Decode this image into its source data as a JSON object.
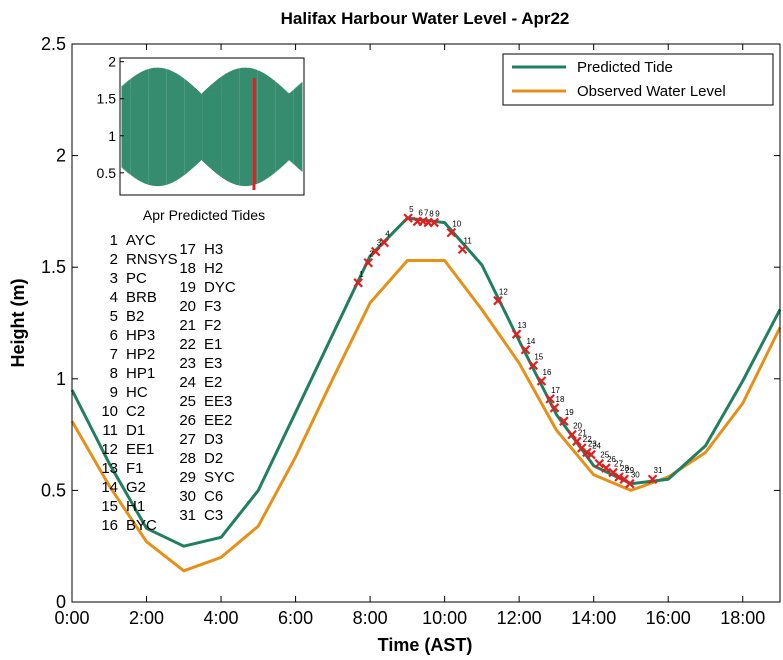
{
  "chart_data": {
    "type": "line",
    "title": "Halifax Harbour Water Level - Apr22",
    "xlabel": "Time (AST)",
    "ylabel": "Height (m)",
    "xlim": [
      0,
      19
    ],
    "ylim": [
      0,
      2.5
    ],
    "x_ticks": [
      "0:00",
      "2:00",
      "4:00",
      "6:00",
      "8:00",
      "10:00",
      "12:00",
      "14:00",
      "16:00",
      "18:00"
    ],
    "y_ticks": [
      "0",
      "0.5",
      "1",
      "1.5",
      "2",
      "2.5"
    ],
    "legend_position": "top-right",
    "series": [
      {
        "name": "Predicted Tide",
        "color": "#1f7f5e",
        "x": [
          0,
          1,
          2,
          3,
          4,
          5,
          6,
          7,
          8,
          9,
          10,
          11,
          12,
          13,
          14,
          15,
          16,
          17,
          18,
          19
        ],
        "y": [
          0.95,
          0.62,
          0.33,
          0.25,
          0.29,
          0.5,
          0.85,
          1.2,
          1.55,
          1.72,
          1.7,
          1.51,
          1.17,
          0.84,
          0.61,
          0.53,
          0.55,
          0.7,
          0.99,
          1.31
        ]
      },
      {
        "name": "Observed Water Level",
        "color": "#e69018",
        "x": [
          0,
          1,
          2,
          3,
          4,
          5,
          6,
          7,
          8,
          9,
          10,
          11,
          12,
          13,
          14,
          15,
          16,
          17,
          18,
          19
        ],
        "y": [
          0.81,
          0.52,
          0.27,
          0.14,
          0.2,
          0.34,
          0.65,
          1.0,
          1.34,
          1.53,
          1.53,
          1.31,
          1.07,
          0.77,
          0.57,
          0.5,
          0.56,
          0.67,
          0.89,
          1.23
        ]
      }
    ],
    "markers": {
      "color": "#e02020",
      "points": [
        {
          "id": "1",
          "x": 7.68,
          "y": 1.43
        },
        {
          "id": "2",
          "x": 7.95,
          "y": 1.52
        },
        {
          "id": "3",
          "x": 8.15,
          "y": 1.57
        },
        {
          "id": "4",
          "x": 8.38,
          "y": 1.61
        },
        {
          "id": "5",
          "x": 9.02,
          "y": 1.72
        },
        {
          "id": "6",
          "x": 9.27,
          "y": 1.705
        },
        {
          "id": "7",
          "x": 9.42,
          "y": 1.705
        },
        {
          "id": "8",
          "x": 9.56,
          "y": 1.7
        },
        {
          "id": "9",
          "x": 9.72,
          "y": 1.7
        },
        {
          "id": "10",
          "x": 10.18,
          "y": 1.655
        },
        {
          "id": "11",
          "x": 10.48,
          "y": 1.58
        },
        {
          "id": "12",
          "x": 11.43,
          "y": 1.35
        },
        {
          "id": "13",
          "x": 11.93,
          "y": 1.2
        },
        {
          "id": "14",
          "x": 12.17,
          "y": 1.13
        },
        {
          "id": "15",
          "x": 12.38,
          "y": 1.06
        },
        {
          "id": "16",
          "x": 12.6,
          "y": 0.99
        },
        {
          "id": "17",
          "x": 12.83,
          "y": 0.91
        },
        {
          "id": "18",
          "x": 12.95,
          "y": 0.87
        },
        {
          "id": "19",
          "x": 13.2,
          "y": 0.81
        },
        {
          "id": "20",
          "x": 13.42,
          "y": 0.75
        },
        {
          "id": "21",
          "x": 13.55,
          "y": 0.72
        },
        {
          "id": "22",
          "x": 13.68,
          "y": 0.69
        },
        {
          "id": "23",
          "x": 13.82,
          "y": 0.67
        },
        {
          "id": "24",
          "x": 13.93,
          "y": 0.66
        },
        {
          "id": "25",
          "x": 14.15,
          "y": 0.62
        },
        {
          "id": "26",
          "x": 14.33,
          "y": 0.6
        },
        {
          "id": "27",
          "x": 14.52,
          "y": 0.58
        },
        {
          "id": "28",
          "x": 14.68,
          "y": 0.56
        },
        {
          "id": "29",
          "x": 14.82,
          "y": 0.55
        },
        {
          "id": "30",
          "x": 14.97,
          "y": 0.53
        },
        {
          "id": "31",
          "x": 15.58,
          "y": 0.55
        }
      ]
    },
    "inset": {
      "title": "Apr Predicted Tides",
      "y_ticks": [
        "0.5",
        "1",
        "1.5",
        "2"
      ],
      "ylim": [
        0.2,
        2.05
      ],
      "line_color": "#1f7f5e",
      "highlight_color": "#e02020",
      "highlight_fraction": 0.72
    }
  },
  "stations": [
    {
      "num": "1",
      "name": "AYC"
    },
    {
      "num": "2",
      "name": "RNSYS"
    },
    {
      "num": "3",
      "name": "PC"
    },
    {
      "num": "4",
      "name": "BRB"
    },
    {
      "num": "5",
      "name": "B2"
    },
    {
      "num": "6",
      "name": "HP3"
    },
    {
      "num": "7",
      "name": "HP2"
    },
    {
      "num": "8",
      "name": "HP1"
    },
    {
      "num": "9",
      "name": "HC"
    },
    {
      "num": "10",
      "name": "C2"
    },
    {
      "num": "11",
      "name": "D1"
    },
    {
      "num": "12",
      "name": "EE1"
    },
    {
      "num": "13",
      "name": "F1"
    },
    {
      "num": "14",
      "name": "G2"
    },
    {
      "num": "15",
      "name": "H1"
    },
    {
      "num": "16",
      "name": "BYC"
    },
    {
      "num": "17",
      "name": "H3"
    },
    {
      "num": "18",
      "name": "H2"
    },
    {
      "num": "19",
      "name": "DYC"
    },
    {
      "num": "20",
      "name": "F3"
    },
    {
      "num": "21",
      "name": "F2"
    },
    {
      "num": "22",
      "name": "E1"
    },
    {
      "num": "23",
      "name": "E3"
    },
    {
      "num": "24",
      "name": "E2"
    },
    {
      "num": "25",
      "name": "EE3"
    },
    {
      "num": "26",
      "name": "EE2"
    },
    {
      "num": "27",
      "name": "D3"
    },
    {
      "num": "28",
      "name": "D2"
    },
    {
      "num": "29",
      "name": "SYC"
    },
    {
      "num": "30",
      "name": "C6"
    },
    {
      "num": "31",
      "name": "C3"
    }
  ]
}
